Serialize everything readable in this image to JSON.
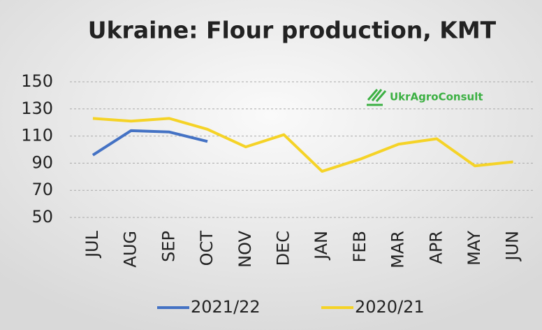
{
  "chart_data": {
    "type": "line",
    "title": "Ukraine: Flour production, KMT",
    "watermark": "UkrAgroConsult",
    "categories": [
      "JUL",
      "AUG",
      "SEP",
      "OCT",
      "NOV",
      "DEC",
      "JAN",
      "FEB",
      "MAR",
      "APR",
      "MAY",
      "JUN"
    ],
    "series": [
      {
        "name": "2021/22",
        "color": "#4472c4",
        "values": [
          96,
          114,
          113,
          106,
          null,
          null,
          null,
          null,
          null,
          null,
          null,
          null
        ]
      },
      {
        "name": "2020/21",
        "color": "#f5d327",
        "values": [
          123,
          121,
          123,
          115,
          102,
          111,
          84,
          93,
          104,
          108,
          88,
          91
        ]
      }
    ],
    "ylim": [
      50,
      150
    ],
    "yticks": [
      50,
      70,
      90,
      110,
      130,
      150
    ],
    "grid": true,
    "legend": "bottom"
  }
}
